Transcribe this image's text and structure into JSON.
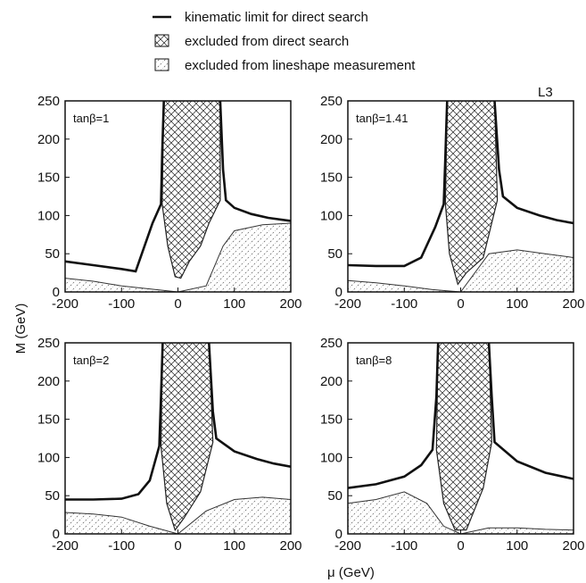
{
  "legend": [
    {
      "label": "kinematic limit for direct search",
      "symbol": "line"
    },
    {
      "label": "excluded from direct search",
      "symbol": "crosshatch"
    },
    {
      "label": "excluded from lineshape measurement",
      "symbol": "diagonal-hatch"
    }
  ],
  "experiment_tag": "L3",
  "xlabel": "μ (GeV)",
  "ylabel": "M (GeV)",
  "chart_data": [
    {
      "type": "area",
      "panel_label": "tanβ=1",
      "xlim": [
        -200,
        200
      ],
      "ylim": [
        0,
        250
      ],
      "xticks": [
        "-200",
        "-100",
        "0",
        "100",
        "200"
      ],
      "yticks": [
        "0",
        "50",
        "100",
        "150",
        "200",
        "250"
      ],
      "kinematic_limit": {
        "left": [
          [
            -200,
            40
          ],
          [
            -150,
            35
          ],
          [
            -100,
            30
          ],
          [
            -75,
            27
          ],
          [
            -45,
            90
          ],
          [
            -30,
            115
          ],
          [
            -28,
            180
          ],
          [
            -25,
            250
          ]
        ],
        "right": [
          [
            75,
            250
          ],
          [
            80,
            160
          ],
          [
            85,
            120
          ],
          [
            100,
            110
          ],
          [
            130,
            102
          ],
          [
            160,
            97
          ],
          [
            200,
            93
          ]
        ]
      },
      "direct_search_region": [
        [
          -25,
          250
        ],
        [
          -28,
          115
        ],
        [
          -18,
          60
        ],
        [
          -5,
          20
        ],
        [
          5,
          18
        ],
        [
          20,
          40
        ],
        [
          40,
          60
        ],
        [
          55,
          90
        ],
        [
          75,
          120
        ],
        [
          75,
          250
        ]
      ],
      "lineshape_region": [
        [
          -200,
          18
        ],
        [
          -150,
          14
        ],
        [
          -100,
          8
        ],
        [
          -50,
          4
        ],
        [
          0,
          0
        ],
        [
          50,
          8
        ],
        [
          80,
          60
        ],
        [
          100,
          80
        ],
        [
          150,
          88
        ],
        [
          200,
          90
        ],
        [
          200,
          0
        ],
        [
          -200,
          0
        ]
      ]
    },
    {
      "type": "area",
      "panel_label": "tanβ=1.41",
      "xlim": [
        -200,
        200
      ],
      "ylim": [
        0,
        250
      ],
      "xticks": [
        "-200",
        "-100",
        "0",
        "100",
        "200"
      ],
      "yticks": [
        "0",
        "50",
        "100",
        "150",
        "200",
        "250"
      ],
      "kinematic_limit": {
        "left": [
          [
            -200,
            35
          ],
          [
            -150,
            34
          ],
          [
            -100,
            34
          ],
          [
            -70,
            45
          ],
          [
            -45,
            85
          ],
          [
            -30,
            115
          ],
          [
            -27,
            180
          ],
          [
            -24,
            250
          ]
        ],
        "right": [
          [
            60,
            250
          ],
          [
            68,
            160
          ],
          [
            75,
            125
          ],
          [
            100,
            110
          ],
          [
            140,
            100
          ],
          [
            170,
            94
          ],
          [
            200,
            90
          ]
        ]
      },
      "direct_search_region": [
        [
          -24,
          250
        ],
        [
          -27,
          115
        ],
        [
          -20,
          50
        ],
        [
          -5,
          10
        ],
        [
          10,
          25
        ],
        [
          40,
          45
        ],
        [
          65,
          120
        ],
        [
          60,
          250
        ]
      ],
      "lineshape_region": [
        [
          -200,
          15
        ],
        [
          -150,
          12
        ],
        [
          -100,
          8
        ],
        [
          -50,
          3
        ],
        [
          0,
          0
        ],
        [
          50,
          50
        ],
        [
          100,
          55
        ],
        [
          150,
          50
        ],
        [
          200,
          45
        ],
        [
          200,
          0
        ],
        [
          -200,
          0
        ]
      ]
    },
    {
      "type": "area",
      "panel_label": "tanβ=2",
      "xlim": [
        -200,
        200
      ],
      "ylim": [
        0,
        250
      ],
      "xticks": [
        "-200",
        "-100",
        "0",
        "100",
        "200"
      ],
      "yticks": [
        "0",
        "50",
        "100",
        "150",
        "200",
        "250"
      ],
      "kinematic_limit": {
        "left": [
          [
            -200,
            45
          ],
          [
            -150,
            45
          ],
          [
            -100,
            46
          ],
          [
            -70,
            52
          ],
          [
            -50,
            70
          ],
          [
            -33,
            115
          ],
          [
            -30,
            180
          ],
          [
            -27,
            250
          ]
        ],
        "right": [
          [
            55,
            250
          ],
          [
            62,
            160
          ],
          [
            68,
            125
          ],
          [
            100,
            108
          ],
          [
            140,
            98
          ],
          [
            170,
            92
          ],
          [
            200,
            88
          ]
        ]
      },
      "direct_search_region": [
        [
          -27,
          250
        ],
        [
          -30,
          115
        ],
        [
          -20,
          40
        ],
        [
          -5,
          5
        ],
        [
          10,
          20
        ],
        [
          40,
          55
        ],
        [
          62,
          120
        ],
        [
          55,
          250
        ]
      ],
      "lineshape_region": [
        [
          -200,
          28
        ],
        [
          -150,
          26
        ],
        [
          -100,
          22
        ],
        [
          -50,
          10
        ],
        [
          0,
          0
        ],
        [
          50,
          30
        ],
        [
          100,
          45
        ],
        [
          150,
          48
        ],
        [
          200,
          45
        ],
        [
          200,
          0
        ],
        [
          -200,
          0
        ]
      ]
    },
    {
      "type": "area",
      "panel_label": "tanβ=8",
      "xlim": [
        -200,
        200
      ],
      "ylim": [
        0,
        250
      ],
      "xticks": [
        "-200",
        "-100",
        "0",
        "100",
        "200"
      ],
      "yticks": [
        "0",
        "50",
        "100",
        "150",
        "200",
        "250"
      ],
      "kinematic_limit": {
        "left": [
          [
            -200,
            60
          ],
          [
            -150,
            65
          ],
          [
            -100,
            75
          ],
          [
            -70,
            90
          ],
          [
            -50,
            110
          ],
          [
            -43,
            180
          ],
          [
            -40,
            250
          ]
        ],
        "right": [
          [
            50,
            250
          ],
          [
            55,
            180
          ],
          [
            60,
            120
          ],
          [
            100,
            95
          ],
          [
            150,
            80
          ],
          [
            200,
            72
          ]
        ]
      },
      "direct_search_region": [
        [
          -40,
          250
        ],
        [
          -43,
          110
        ],
        [
          -30,
          40
        ],
        [
          -10,
          5
        ],
        [
          10,
          5
        ],
        [
          40,
          60
        ],
        [
          55,
          120
        ],
        [
          50,
          250
        ]
      ],
      "lineshape_region": [
        [
          -200,
          40
        ],
        [
          -150,
          45
        ],
        [
          -100,
          55
        ],
        [
          -60,
          40
        ],
        [
          -30,
          10
        ],
        [
          0,
          0
        ],
        [
          50,
          8
        ],
        [
          100,
          8
        ],
        [
          150,
          6
        ],
        [
          200,
          5
        ],
        [
          200,
          0
        ],
        [
          -200,
          0
        ]
      ]
    }
  ]
}
